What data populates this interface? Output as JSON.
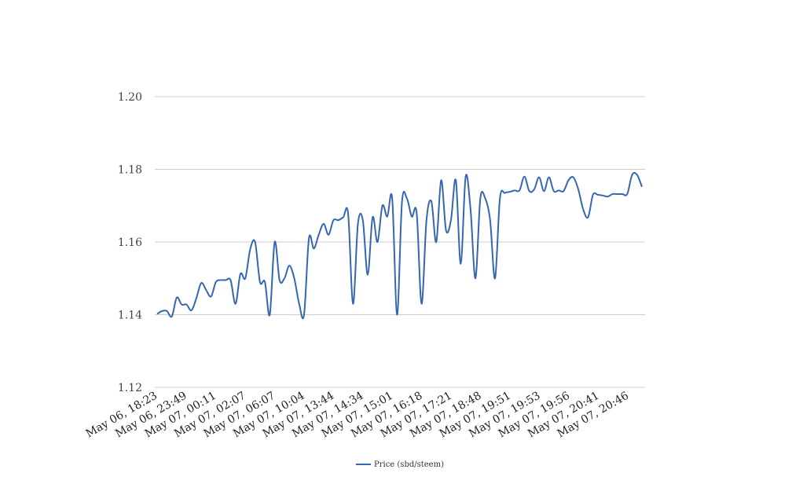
{
  "chart_data": {
    "type": "line",
    "title": "",
    "xlabel": "",
    "ylabel": "",
    "ylim": [
      1.12,
      1.2
    ],
    "yticks": [
      "1.20",
      "1.18",
      "1.16",
      "1.14",
      "1.12"
    ],
    "grid": true,
    "legend_position": "bottom-center",
    "x_tick_labels": [
      "May 06, 18:23",
      "May 06, 23:49",
      "May 07, 00:11",
      "May 07, 02:07",
      "May 07, 06:07",
      "May 07, 10:04",
      "May 07, 13:44",
      "May 07, 14:34",
      "May 07, 15:01",
      "May 07, 16:18",
      "May 07, 17:21",
      "May 07, 18:48",
      "May 07, 19:51",
      "May 07, 19:53",
      "May 07, 19:56",
      "May 07, 20:41",
      "May 07, 20:46"
    ],
    "series": [
      {
        "name": "Price (sbd/steem)",
        "color": "#3566b1",
        "values": [
          1.1402,
          1.141,
          1.141,
          1.1395,
          1.1447,
          1.1428,
          1.1428,
          1.1412,
          1.1445,
          1.1487,
          1.1468,
          1.145,
          1.149,
          1.1495,
          1.1495,
          1.1495,
          1.143,
          1.1512,
          1.15,
          1.158,
          1.16,
          1.149,
          1.149,
          1.14,
          1.16,
          1.1495,
          1.15,
          1.1535,
          1.15,
          1.143,
          1.14,
          1.161,
          1.1582,
          1.162,
          1.165,
          1.162,
          1.166,
          1.166,
          1.1668,
          1.1678,
          1.143,
          1.165,
          1.166,
          1.151,
          1.1668,
          1.16,
          1.17,
          1.167,
          1.172,
          1.14,
          1.171,
          1.172,
          1.167,
          1.168,
          1.143,
          1.166,
          1.1712,
          1.16,
          1.177,
          1.1632,
          1.166,
          1.177,
          1.154,
          1.178,
          1.169,
          1.15,
          1.172,
          1.172,
          1.166,
          1.15,
          1.172,
          1.1735,
          1.1738,
          1.1742,
          1.1742,
          1.178,
          1.174,
          1.1745,
          1.1778,
          1.174,
          1.1778,
          1.174,
          1.1742,
          1.174,
          1.177,
          1.1778,
          1.1745,
          1.169,
          1.1668,
          1.173,
          1.173,
          1.1728,
          1.1725,
          1.1732,
          1.1732,
          1.1732,
          1.1732,
          1.1785,
          1.1785,
          1.1752
        ]
      }
    ]
  }
}
